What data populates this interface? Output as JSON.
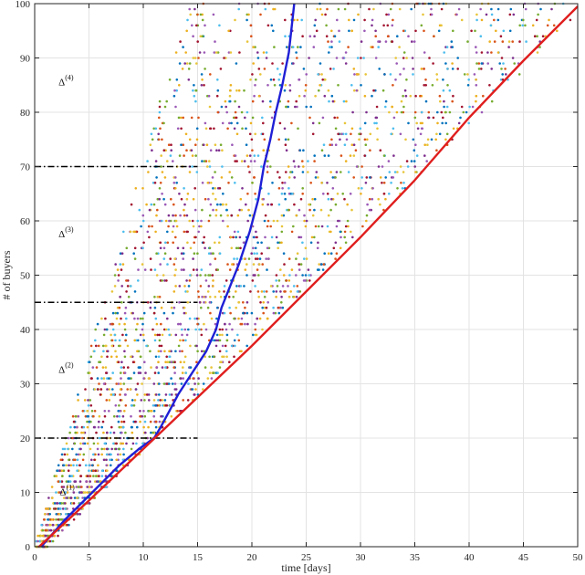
{
  "chart_data": {
    "type": "scatter",
    "xlabel": "time [days]",
    "ylabel": "# of buyers",
    "xlim": [
      0,
      50
    ],
    "ylim": [
      0,
      100
    ],
    "xticks": [
      0,
      5,
      10,
      15,
      20,
      25,
      30,
      35,
      40,
      45,
      50
    ],
    "yticks": [
      0,
      10,
      20,
      30,
      40,
      50,
      60,
      70,
      80,
      90,
      100
    ],
    "grid": true,
    "thresholds": [
      20,
      45,
      70
    ],
    "threshold_extent_days": [
      0,
      15
    ],
    "phase_labels": [
      {
        "base": "Δ",
        "sup": "(1)",
        "x": 2.3,
        "y": 9.5
      },
      {
        "base": "Δ",
        "sup": "(2)",
        "x": 2.2,
        "y": 32
      },
      {
        "base": "Δ",
        "sup": "(3)",
        "x": 2.2,
        "y": 57
      },
      {
        "base": "Δ",
        "sup": "(4)",
        "x": 2.2,
        "y": 85
      }
    ],
    "series": [
      {
        "color": "#1f1fd6",
        "x": [
          0.6,
          2.8,
          5.3,
          7.8,
          9.6,
          11.0,
          11.6,
          12.4,
          13.2,
          14.5,
          15.8,
          16.7,
          17.2,
          18.0,
          18.8,
          19.8,
          20.6,
          21.1,
          21.7,
          22.2,
          22.8,
          23.4,
          23.9
        ],
        "y": [
          0,
          5,
          10,
          15,
          18,
          20,
          22,
          25,
          28,
          32,
          36,
          40,
          44,
          48,
          52,
          58,
          64,
          70,
          75,
          80,
          85,
          91,
          100
        ]
      },
      {
        "color": "#e01e1e",
        "x": [
          0.4,
          5,
          10,
          15,
          20,
          25,
          30,
          35,
          40,
          45,
          50
        ],
        "y": [
          0,
          8.5,
          18,
          27.5,
          37,
          47,
          57,
          67.5,
          79,
          89.5,
          99.5
        ]
      }
    ],
    "scatter_colors": [
      "#0072bd",
      "#d95319",
      "#edb120",
      "#7e2f8e",
      "#77ac30",
      "#4dbeee",
      "#a2142f",
      "#e8c53a",
      "#9b59b6"
    ],
    "scatter_envelope": {
      "lower_start_days": 0.0,
      "lower_slope_days_per_buyer": 0.14,
      "upper_start_days": 1.2,
      "upper_slope_days_per_buyer": 0.5
    }
  }
}
